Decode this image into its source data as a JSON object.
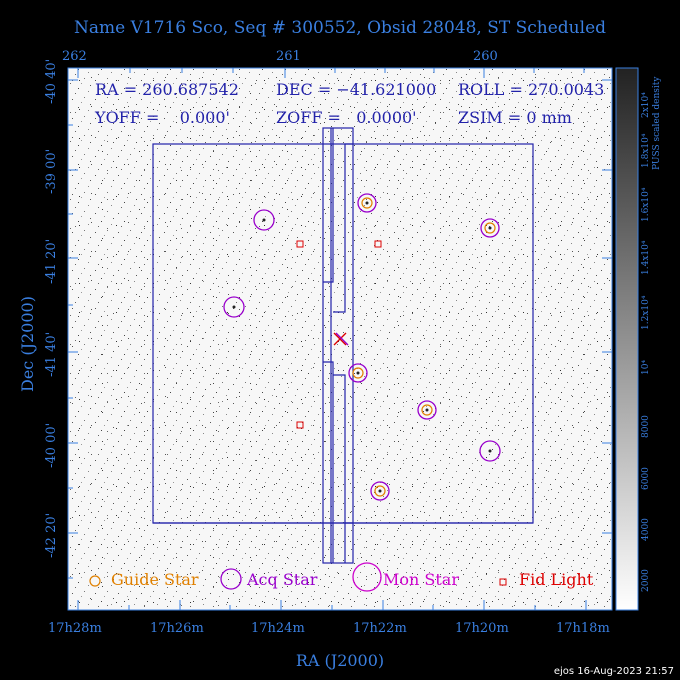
{
  "title": "Name V1716 Sco, Seq # 300552, Obsid 28048, ST Scheduled",
  "top_axis_ticks": [
    "262",
    "261",
    "260"
  ],
  "bottom_axis_ticks": [
    "17h28m",
    "17h26m",
    "17h24m",
    "17h22m",
    "17h20m",
    "17h18m"
  ],
  "left_axis_ticks": [
    "-40 40'",
    "-39 00'",
    "-41 20'",
    "-41 40'",
    "-40 00'",
    "-42 20'"
  ],
  "x_axis_label": "RA (J2000)",
  "y_axis_label": "Dec (J2000)",
  "info": {
    "ra": "RA = 260.687542",
    "dec": "DEC = −41.621000",
    "roll": "ROLL = 270.0043",
    "yoff": "YOFF =    0.000'",
    "zoff": "ZOFF =   0.0000'",
    "zsim": "ZSIM = 0 mm"
  },
  "legend": {
    "guide": "Guide Star",
    "acq": "Acq Star",
    "mon": "Mon Star",
    "fid": "Fid Light"
  },
  "colorbar": {
    "label": "PUSS scaled density",
    "ticks": [
      "2000",
      "4000",
      "6000",
      "8000",
      "10⁴",
      "1.2x10⁴",
      "1.4x10⁴",
      "1.6x10⁴",
      "1.8x10⁴",
      "2x10⁴"
    ]
  },
  "colors": {
    "axis": "#3a7fe0",
    "guide": "#e08000",
    "acq": "#9900cc",
    "mon": "#cc00cc",
    "fid": "#dd0000",
    "overlay": "#2222aa"
  },
  "footer": "ejos 16-Aug-2023 21:57"
}
